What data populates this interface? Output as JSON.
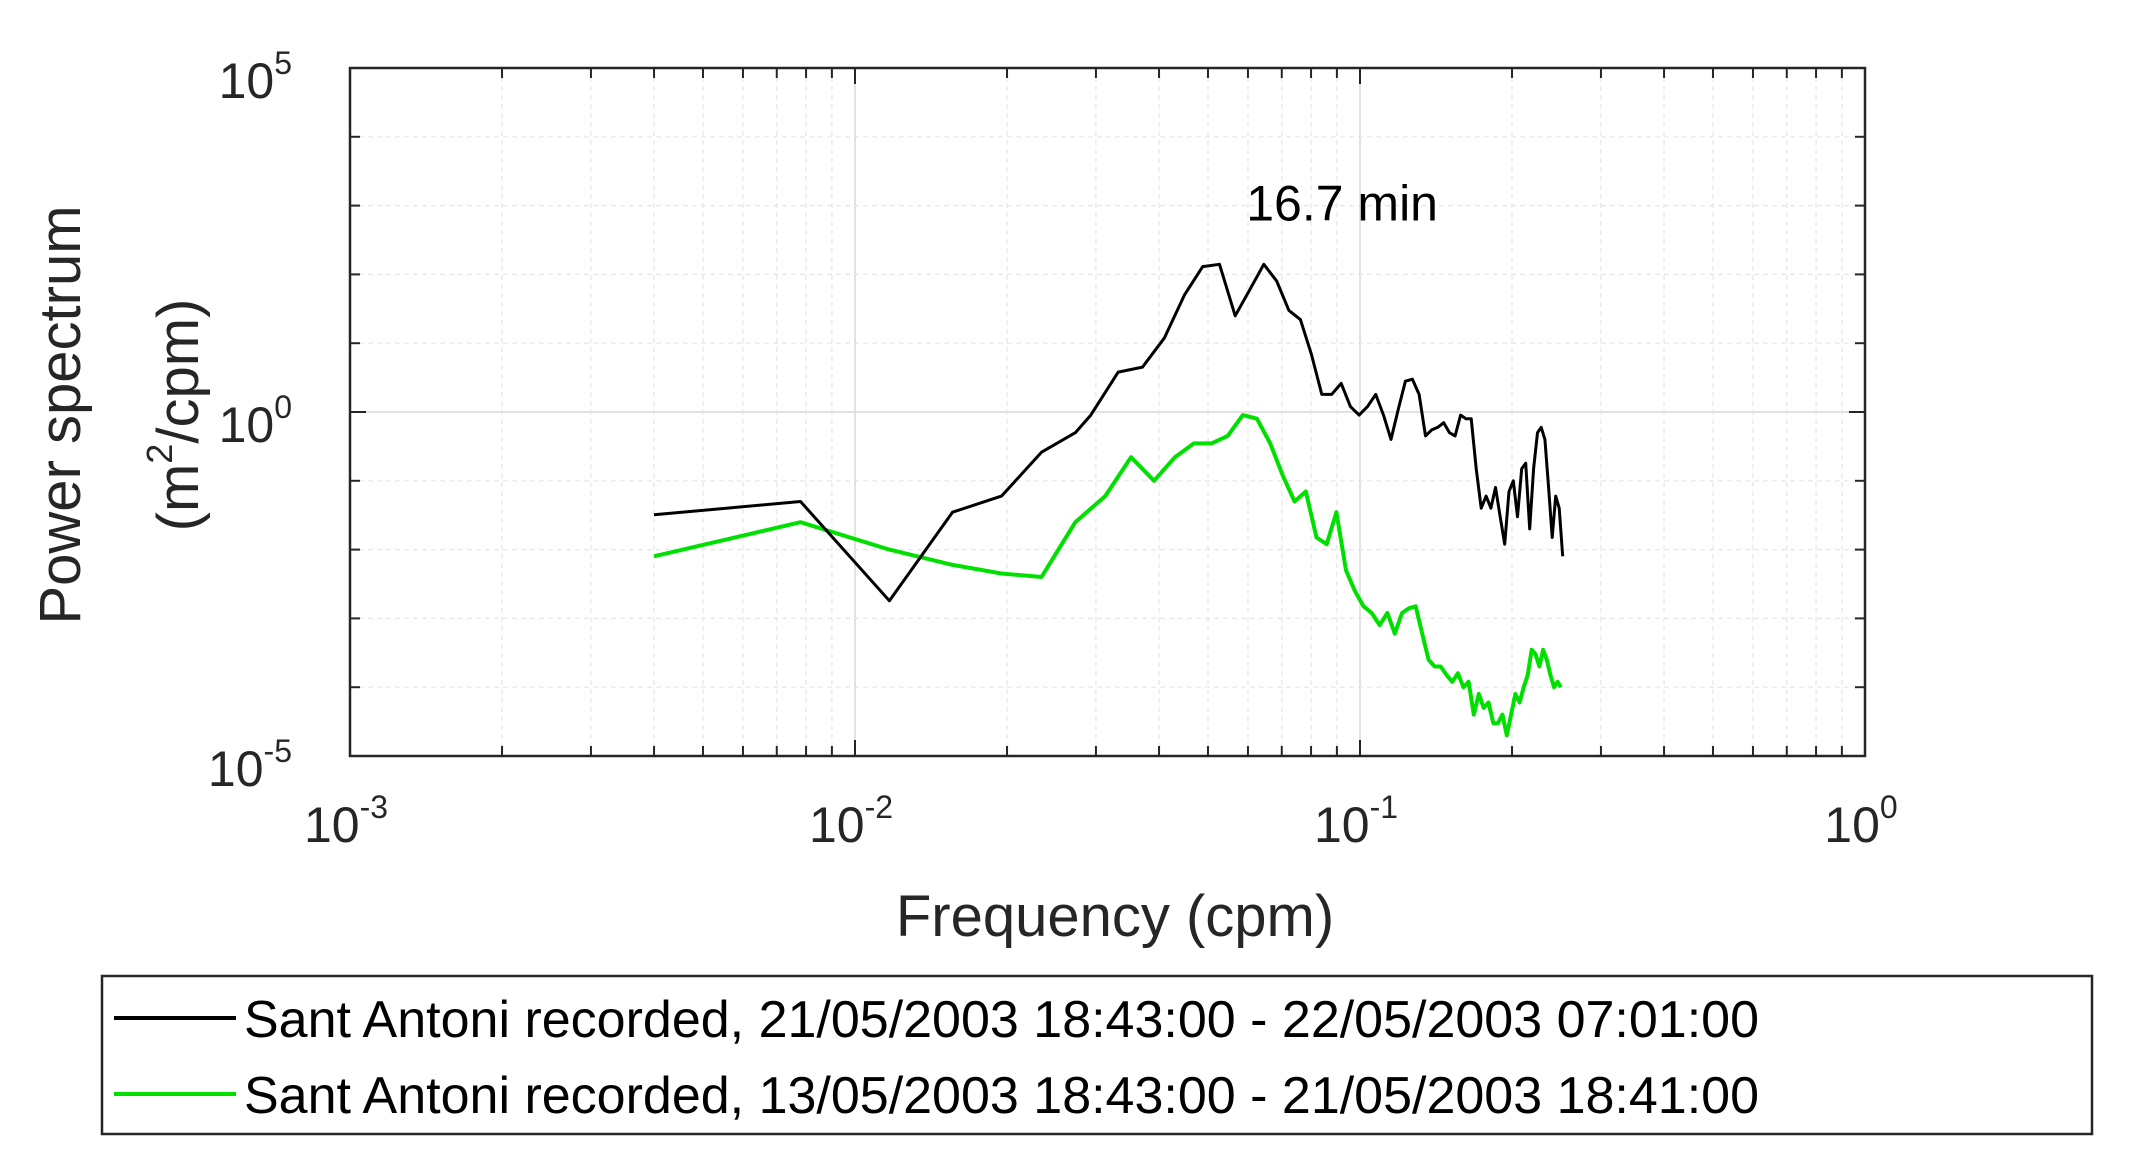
{
  "chart_data": {
    "type": "line",
    "title": "",
    "xlabel": "Frequency (cpm)",
    "ylabel_line1": "Power spectrum",
    "ylabel_line2_pre": "(m",
    "ylabel_line2_sup": "2",
    "ylabel_line2_post": "/cpm)",
    "x_scale": "log",
    "y_scale": "log",
    "xlim": [
      0.001,
      1
    ],
    "ylim": [
      1e-05,
      100000
    ],
    "grid": true,
    "legend_placement": "bottom",
    "x_ticks": [
      {
        "value": 0.001,
        "base": "10",
        "exp": "-3"
      },
      {
        "value": 0.01,
        "base": "10",
        "exp": "-2"
      },
      {
        "value": 0.1,
        "base": "10",
        "exp": "-1"
      },
      {
        "value": 1,
        "base": "10",
        "exp": "0"
      }
    ],
    "y_ticks": [
      {
        "value": 1e-05,
        "base": "10",
        "exp": "-5"
      },
      {
        "value": 1,
        "base": "10",
        "exp": "0"
      },
      {
        "value": 100000,
        "base": "10",
        "exp": "5"
      }
    ],
    "annotations": [
      {
        "text": "16.7 min",
        "x": 0.064,
        "y": 900
      }
    ],
    "series": [
      {
        "name": "Sant Antoni recorded, 21/05/2003 18:43:00 - 22/05/2003 07:01:00",
        "color": "#000000",
        "points": [
          [
            0.004,
            0.032
          ],
          [
            0.0078,
            0.05
          ],
          [
            0.0117,
            0.0018
          ],
          [
            0.0156,
            0.035
          ],
          [
            0.0195,
            0.06
          ],
          [
            0.0234,
            0.26
          ],
          [
            0.0273,
            0.5
          ],
          [
            0.0293,
            0.9
          ],
          [
            0.0332,
            3.8
          ],
          [
            0.0371,
            4.5
          ],
          [
            0.041,
            12
          ],
          [
            0.0449,
            50
          ],
          [
            0.0488,
            130
          ],
          [
            0.0527,
            140
          ],
          [
            0.0566,
            25
          ],
          [
            0.0605,
            60
          ],
          [
            0.0645,
            140
          ],
          [
            0.0684,
            80
          ],
          [
            0.0723,
            30
          ],
          [
            0.0762,
            22
          ],
          [
            0.0801,
            7
          ],
          [
            0.084,
            1.8
          ],
          [
            0.0879,
            1.8
          ],
          [
            0.0918,
            2.6
          ],
          [
            0.0957,
            1.2
          ],
          [
            0.0996,
            0.9
          ],
          [
            0.1035,
            1.2
          ],
          [
            0.1074,
            1.8
          ],
          [
            0.1113,
            0.9
          ],
          [
            0.1152,
            0.4
          ],
          [
            0.1191,
            1.1
          ],
          [
            0.123,
            2.8
          ],
          [
            0.127,
            3.0
          ],
          [
            0.1309,
            1.8
          ],
          [
            0.1348,
            0.45
          ],
          [
            0.1387,
            0.55
          ],
          [
            0.1426,
            0.6
          ],
          [
            0.1465,
            0.7
          ],
          [
            0.1504,
            0.5
          ],
          [
            0.1543,
            0.45
          ],
          [
            0.1582,
            0.9
          ],
          [
            0.1621,
            0.8
          ],
          [
            0.166,
            0.8
          ],
          [
            0.1699,
            0.15
          ],
          [
            0.1738,
            0.04
          ],
          [
            0.1777,
            0.06
          ],
          [
            0.1816,
            0.04
          ],
          [
            0.1855,
            0.08
          ],
          [
            0.1895,
            0.03
          ],
          [
            0.1934,
            0.012
          ],
          [
            0.1973,
            0.07
          ],
          [
            0.2012,
            0.1
          ],
          [
            0.2051,
            0.03
          ],
          [
            0.209,
            0.15
          ],
          [
            0.2129,
            0.18
          ],
          [
            0.2168,
            0.02
          ],
          [
            0.2207,
            0.15
          ],
          [
            0.2246,
            0.5
          ],
          [
            0.2285,
            0.6
          ],
          [
            0.2324,
            0.4
          ],
          [
            0.2363,
            0.08
          ],
          [
            0.2402,
            0.015
          ],
          [
            0.2441,
            0.06
          ],
          [
            0.248,
            0.04
          ],
          [
            0.252,
            0.008
          ]
        ]
      },
      {
        "name": "Sant Antoni recorded, 13/05/2003 18:43:00 - 21/05/2003 18:41:00",
        "color": "#00e000",
        "points": [
          [
            0.004,
            0.008
          ],
          [
            0.0078,
            0.025
          ],
          [
            0.0117,
            0.01
          ],
          [
            0.0156,
            0.006
          ],
          [
            0.0195,
            0.0045
          ],
          [
            0.0234,
            0.004
          ],
          [
            0.0273,
            0.025
          ],
          [
            0.0313,
            0.06
          ],
          [
            0.0352,
            0.22
          ],
          [
            0.0391,
            0.1
          ],
          [
            0.043,
            0.22
          ],
          [
            0.0469,
            0.35
          ],
          [
            0.0508,
            0.35
          ],
          [
            0.0547,
            0.45
          ],
          [
            0.0586,
            0.9
          ],
          [
            0.0625,
            0.8
          ],
          [
            0.0664,
            0.35
          ],
          [
            0.0703,
            0.12
          ],
          [
            0.0742,
            0.05
          ],
          [
            0.0781,
            0.07
          ],
          [
            0.082,
            0.015
          ],
          [
            0.0859,
            0.012
          ],
          [
            0.0898,
            0.035
          ],
          [
            0.0938,
            0.005
          ],
          [
            0.0977,
            0.0025
          ],
          [
            0.1016,
            0.0015
          ],
          [
            0.1055,
            0.0012
          ],
          [
            0.1094,
            0.0008
          ],
          [
            0.1133,
            0.0012
          ],
          [
            0.1172,
            0.0006
          ],
          [
            0.1211,
            0.0012
          ],
          [
            0.125,
            0.0014
          ],
          [
            0.1289,
            0.0015
          ],
          [
            0.1328,
            0.0006
          ],
          [
            0.1367,
            0.00025
          ],
          [
            0.1406,
            0.0002
          ],
          [
            0.1445,
            0.0002
          ],
          [
            0.1484,
            0.00015
          ],
          [
            0.1523,
            0.00012
          ],
          [
            0.1563,
            0.00016
          ],
          [
            0.1602,
            0.0001
          ],
          [
            0.1641,
            0.00012
          ],
          [
            0.168,
            4e-05
          ],
          [
            0.1719,
            8e-05
          ],
          [
            0.1758,
            5e-05
          ],
          [
            0.1797,
            6e-05
          ],
          [
            0.1836,
            3e-05
          ],
          [
            0.1875,
            3e-05
          ],
          [
            0.1914,
            4e-05
          ],
          [
            0.1953,
            2e-05
          ],
          [
            0.1992,
            4e-05
          ],
          [
            0.2031,
            8e-05
          ],
          [
            0.207,
            6e-05
          ],
          [
            0.2109,
            0.0001
          ],
          [
            0.2148,
            0.00015
          ],
          [
            0.2188,
            0.00035
          ],
          [
            0.2227,
            0.0003
          ],
          [
            0.2266,
            0.0002
          ],
          [
            0.2305,
            0.00035
          ],
          [
            0.2344,
            0.00025
          ],
          [
            0.2383,
            0.00015
          ],
          [
            0.2422,
            0.0001
          ],
          [
            0.2461,
            0.00012
          ],
          [
            0.25,
            0.0001
          ]
        ]
      }
    ]
  }
}
